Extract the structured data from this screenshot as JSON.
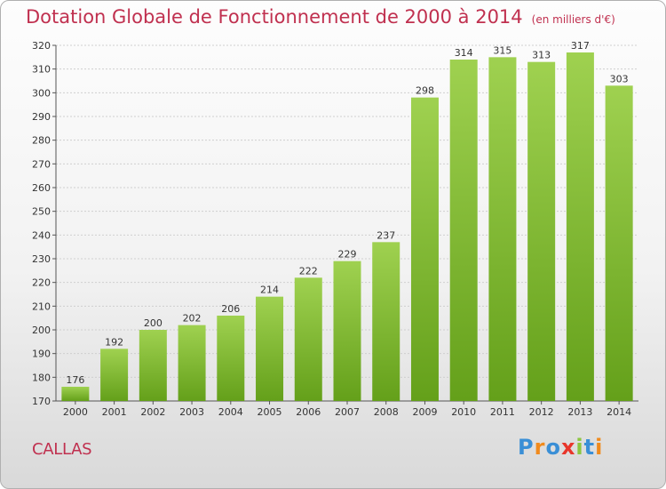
{
  "title": "Dotation Globale de Fonctionnement de 2000 à 2014",
  "unit_note": "(en milliers d'€)",
  "commune": "CALLAS",
  "logo": {
    "letters": [
      "P",
      "r",
      "o",
      "x",
      "i",
      "t",
      "i"
    ],
    "colors": [
      "#3a8fd6",
      "#f08a1c",
      "#3a8fd6",
      "#e8362b",
      "#8cc63f",
      "#3a8fd6",
      "#f08a1c"
    ]
  },
  "chart_data": {
    "type": "bar",
    "title": "Dotation Globale de Fonctionnement de 2000 à 2014",
    "xlabel": "",
    "ylabel": "",
    "categories": [
      "2000",
      "2001",
      "2002",
      "2003",
      "2004",
      "2005",
      "2006",
      "2007",
      "2008",
      "2009",
      "2010",
      "2011",
      "2012",
      "2013",
      "2014"
    ],
    "values": [
      176,
      192,
      200,
      202,
      206,
      214,
      222,
      229,
      237,
      298,
      314,
      315,
      313,
      317,
      303
    ],
    "ylim": [
      170,
      320
    ],
    "yticks": [
      170,
      180,
      190,
      200,
      210,
      220,
      230,
      240,
      250,
      260,
      270,
      280,
      290,
      300,
      310,
      320
    ],
    "grid": true,
    "bar_color": "#7fba2e"
  }
}
